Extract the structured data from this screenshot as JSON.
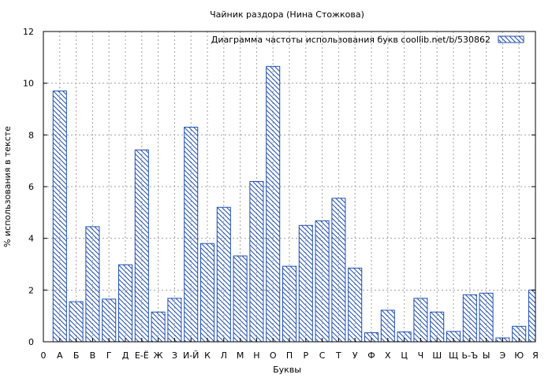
{
  "chart_data": {
    "type": "bar",
    "title": "Чайник раздора (Нина Стожкова)",
    "xlabel": "Буквы",
    "ylabel": "% использования в тексте",
    "ylim": [
      0,
      12
    ],
    "yticks": [
      0,
      2,
      4,
      6,
      8,
      10,
      12
    ],
    "grid": true,
    "legend_position": "top-right",
    "categories": [
      "0",
      "А",
      "Б",
      "В",
      "Г",
      "Д",
      "Е-Ё",
      "Ж",
      "З",
      "И-Й",
      "К",
      "Л",
      "М",
      "Н",
      "О",
      "П",
      "Р",
      "С",
      "Т",
      "У",
      "Ф",
      "Х",
      "Ц",
      "Ч",
      "Ш",
      "Щ",
      "Ь-Ъ",
      "Ы",
      "Э",
      "Ю",
      "Я"
    ],
    "series": [
      {
        "name": "Диаграмма частоты использования букв  coollib.net/b/530862",
        "color": "#1f4fb5",
        "values": [
          null,
          9.7,
          1.55,
          4.45,
          1.65,
          2.98,
          7.42,
          1.15,
          1.68,
          8.3,
          3.8,
          5.2,
          3.32,
          6.2,
          10.65,
          2.92,
          4.5,
          4.68,
          5.55,
          2.85,
          0.35,
          1.22,
          0.38,
          1.68,
          1.15,
          0.4,
          1.82,
          1.88,
          0.15,
          0.6,
          2.0
        ]
      }
    ]
  }
}
